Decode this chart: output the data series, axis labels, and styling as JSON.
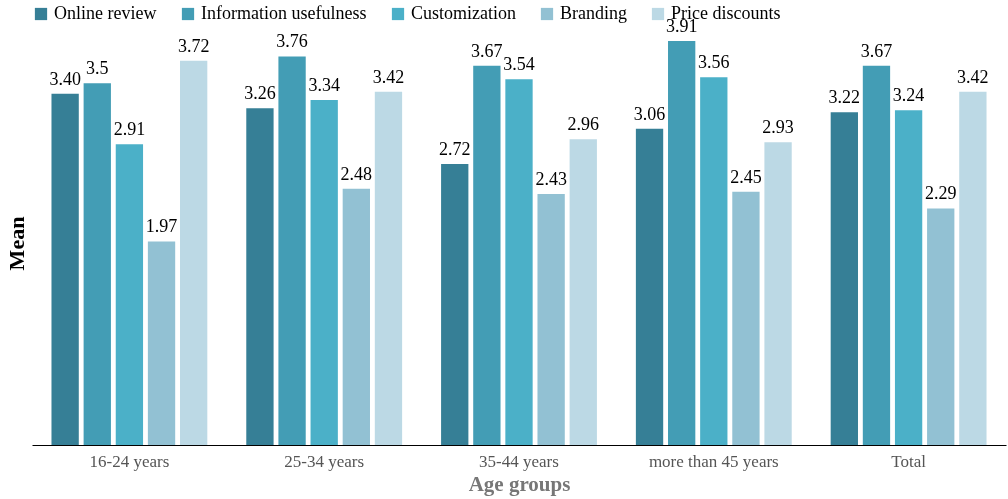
{
  "chart_data": {
    "type": "bar",
    "xlabel": "Age groups",
    "ylabel": "Mean",
    "categories": [
      "16-24 years",
      "25-34 years",
      "35-44 years",
      "more than 45 years",
      "Total"
    ],
    "legend": "top",
    "grid": false,
    "series": [
      {
        "name": "Online review",
        "color": "#367f96",
        "values": [
          3.4,
          3.26,
          2.72,
          3.06,
          3.22
        ],
        "value_labels": [
          "3.40",
          "3.26",
          "2.72",
          "3.06",
          "3.22"
        ]
      },
      {
        "name": "Information usefulness",
        "color": "#439db5",
        "values": [
          3.5,
          3.76,
          3.67,
          3.91,
          3.67
        ],
        "value_labels": [
          "3.5",
          "3.76",
          "3.67",
          "3.91",
          "3.67"
        ]
      },
      {
        "name": "Customization",
        "color": "#4bb0c8",
        "values": [
          2.91,
          3.34,
          3.54,
          3.56,
          3.24
        ],
        "value_labels": [
          "2.91",
          "3.34",
          "3.54",
          "3.56",
          "3.24"
        ]
      },
      {
        "name": "Branding",
        "color": "#92c1d3",
        "values": [
          1.97,
          2.48,
          2.43,
          2.45,
          2.29
        ],
        "value_labels": [
          "1.97",
          "2.48",
          "2.43",
          "2.45",
          "2.29"
        ]
      },
      {
        "name": "Price discounts",
        "color": "#bcd9e5",
        "values": [
          3.72,
          3.42,
          2.96,
          2.93,
          3.42
        ],
        "value_labels": [
          "3.72",
          "3.42",
          "2.96",
          "2.93",
          "3.42"
        ]
      }
    ]
  }
}
